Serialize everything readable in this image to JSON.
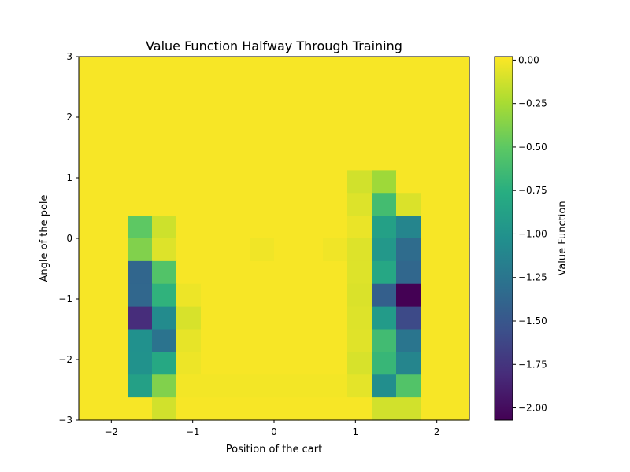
{
  "chart_data": {
    "type": "heatmap",
    "title": "Value Function Halfway Through Training",
    "xlabel": "Position of the cart",
    "ylabel": "Angle of the pole",
    "xlim": [
      -2.4,
      2.4
    ],
    "ylim": [
      -3,
      3
    ],
    "x_ticks": [
      -2,
      -1,
      0,
      1,
      2
    ],
    "y_ticks": [
      -3,
      -2,
      -1,
      0,
      1,
      2,
      3
    ],
    "x_tick_labels": [
      "−2",
      "−1",
      "0",
      "1",
      "2"
    ],
    "y_tick_labels": [
      "−3",
      "−2",
      "−1",
      "0",
      "1",
      "2",
      "3"
    ],
    "colormap": "viridis",
    "colorbar": {
      "label": "Value Function",
      "min": -2.07,
      "max": 0.02,
      "ticks": [
        0.0,
        -0.25,
        -0.5,
        -0.75,
        -1.0,
        -1.25,
        -1.5,
        -1.75,
        -2.0
      ],
      "tick_labels": [
        "0.00",
        "−0.25",
        "−0.50",
        "−0.75",
        "−1.00",
        "−1.25",
        "−1.50",
        "−1.75",
        "−2.00"
      ]
    },
    "grid": false,
    "n_x_bins": 16,
    "n_y_bins": 16,
    "values": [
      [
        0,
        0,
        0,
        0,
        0,
        0,
        0,
        0,
        0,
        0,
        0,
        0,
        0,
        0,
        0,
        0
      ],
      [
        0,
        0,
        0,
        0,
        0,
        0,
        0,
        0,
        0,
        0,
        0,
        0,
        0,
        0,
        0,
        0
      ],
      [
        0,
        0,
        0,
        0,
        0,
        0,
        0,
        0,
        0,
        0,
        0,
        0,
        0,
        0,
        0,
        0
      ],
      [
        0,
        0,
        0,
        0,
        0,
        0,
        0,
        0,
        0,
        0,
        0,
        0,
        0,
        0,
        0,
        0
      ],
      [
        0,
        0,
        0,
        0,
        0,
        0,
        0,
        0,
        0,
        0,
        0,
        0,
        0,
        0,
        0,
        0
      ],
      [
        0,
        0,
        0,
        0,
        0,
        0,
        0,
        0,
        0,
        0,
        0,
        -0.12,
        -0.28,
        0,
        0,
        0
      ],
      [
        0,
        0,
        0,
        0,
        0,
        0,
        0,
        0,
        0,
        0,
        0,
        -0.08,
        -0.62,
        -0.09,
        0,
        0
      ],
      [
        0,
        0,
        -0.5,
        -0.13,
        0,
        0,
        0,
        0,
        0,
        0,
        0,
        -0.04,
        -0.88,
        -1.12,
        0,
        0
      ],
      [
        0,
        0,
        -0.38,
        -0.08,
        0,
        0,
        0,
        -0.02,
        0,
        0,
        -0.02,
        -0.08,
        -0.95,
        -1.33,
        0,
        0
      ],
      [
        0,
        0,
        -1.38,
        -0.55,
        0,
        0,
        0,
        0,
        0,
        0,
        0,
        -0.08,
        -0.82,
        -1.37,
        0,
        0
      ],
      [
        0,
        0,
        -1.37,
        -0.72,
        -0.03,
        0,
        0,
        0,
        0,
        0,
        0,
        -0.09,
        -1.43,
        -2.07,
        0,
        0
      ],
      [
        0,
        0,
        -1.8,
        -1.07,
        -0.1,
        0,
        0,
        0,
        0,
        0,
        0,
        -0.08,
        -0.93,
        -1.6,
        0,
        0
      ],
      [
        0,
        0,
        -1.02,
        -1.27,
        -0.05,
        0,
        0,
        0,
        0,
        0,
        0,
        -0.07,
        -0.63,
        -1.25,
        0,
        0
      ],
      [
        0,
        0,
        -1.01,
        -0.81,
        -0.03,
        0,
        0,
        0,
        0,
        0,
        0,
        -0.1,
        -0.68,
        -1.12,
        0,
        0
      ],
      [
        0,
        0,
        -0.88,
        -0.38,
        -0.01,
        -0.01,
        -0.01,
        -0.01,
        -0.01,
        -0.01,
        -0.01,
        -0.06,
        -1.04,
        -0.55,
        0,
        0
      ],
      [
        0,
        0,
        0,
        -0.12,
        0,
        0,
        0,
        0,
        0,
        0,
        0,
        0,
        -0.12,
        -0.12,
        0,
        0
      ]
    ]
  }
}
